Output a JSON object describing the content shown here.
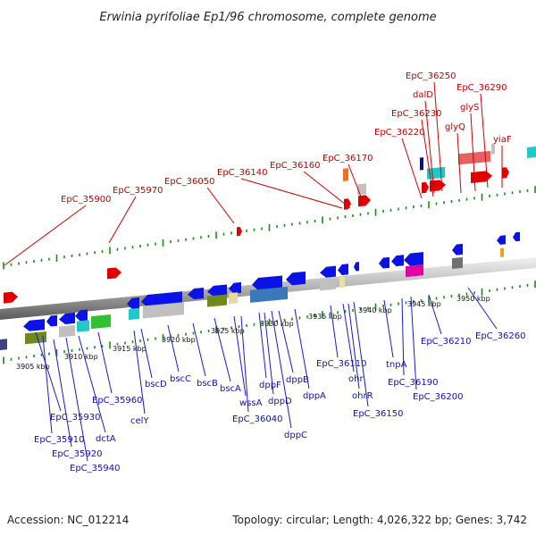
{
  "title": "Erwinia pyrifoliae Ep1/96 chromosome, complete genome",
  "footer": {
    "accession": "Accession: NC_012214",
    "summary": "Topology: circular; Length: 4,026,322 bp; Genes: 3,742"
  },
  "kbp_labels": [
    "3905 kbp",
    "3910 kbp",
    "3915 kbp",
    "3920 kbp",
    "3925 kbp",
    "3930 kbp",
    "3935 kbp",
    "3940 kbp",
    "3945 kbp",
    "3950 kbp"
  ],
  "top_labels": [
    "EpC_35900",
    "EpC_35970",
    "EpC_36050",
    "EpC_36140",
    "EpC_36160",
    "EpC_36170",
    "EpC_36220",
    "EpC_36230",
    "dalD",
    "EpC_36250",
    "glyQ",
    "glyS",
    "EpC_36290",
    "yiaF"
  ],
  "bottom_labels": [
    "EpC_35930",
    "EpC_35910",
    "EpC_35920",
    "EpC_35940",
    "dctA",
    "EpC_35960",
    "celY",
    "bscD",
    "bscC",
    "bscB",
    "bscA",
    "wssA",
    "EpC_36040",
    "dppF",
    "dppD",
    "dppC",
    "dppB",
    "dppA",
    "EpC_36110",
    "ohr",
    "ohrR",
    "EpC_36150",
    "tnpA",
    "EpC_36190",
    "EpC_36200",
    "EpC_36210",
    "EpC_36260"
  ],
  "colors": {
    "top_label": "#c00000",
    "bottom_label": "#1010b0",
    "forward_gene": "#e00000",
    "reverse_gene": "#0b12e8",
    "axis_tick": "#1a8a1a"
  }
}
